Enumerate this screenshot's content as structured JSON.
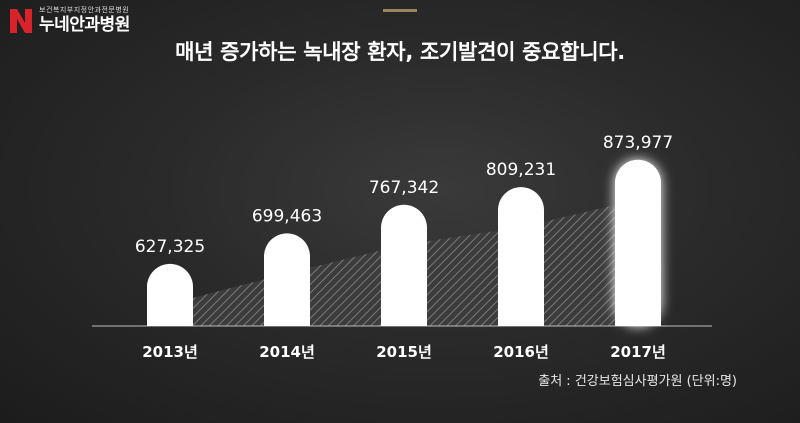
{
  "logo": {
    "subtitle": "보건복지부지정안과전문병원",
    "name": "누네안과병원"
  },
  "title": "매년 증가하는 녹내장 환자, 조기발견이 중요합니다.",
  "source": "출처 : 건강보험심사평가원 (단위:명)",
  "chart_data": {
    "type": "bar",
    "title": "매년 증가하는 녹내장 환자, 조기발견이 중요합니다.",
    "categories": [
      "2013년",
      "2014년",
      "2015년",
      "2016년",
      "2017년"
    ],
    "values": [
      627325,
      699463,
      767342,
      809231,
      873977
    ],
    "value_labels": [
      "627,325",
      "699,463",
      "767,342",
      "809,231",
      "873,977"
    ],
    "ylim": [
      480000,
      890000
    ],
    "grid": false,
    "legend": "none",
    "colors": {
      "bar": "#ffffff",
      "label": "#ffffff",
      "area_hatch": "#8a8a8a"
    }
  }
}
